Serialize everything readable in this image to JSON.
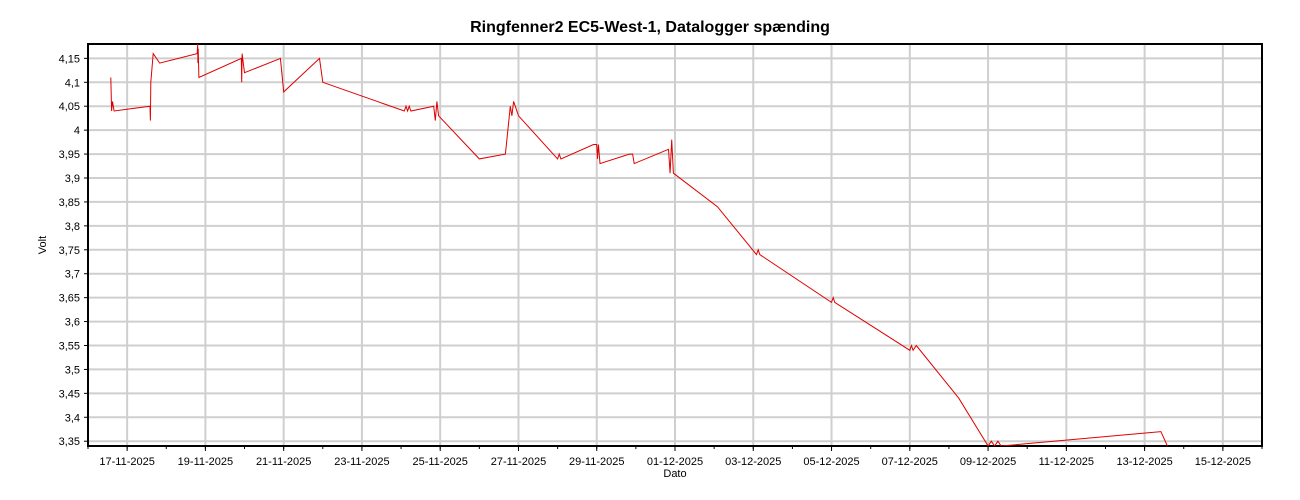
{
  "chart_data": {
    "type": "line",
    "title": "Ringfenner2 EC5-West-1, Datalogger spænding",
    "xlabel": "Dato",
    "ylabel": "Volt",
    "xlim": [
      "2025-11-16",
      "2025-12-16"
    ],
    "ylim": [
      3.34,
      4.18
    ],
    "grid": true,
    "x_ticks": [
      "17-11-2025",
      "19-11-2025",
      "21-11-2025",
      "23-11-2025",
      "25-11-2025",
      "27-11-2025",
      "29-11-2025",
      "01-12-2025",
      "03-12-2025",
      "05-12-2025",
      "07-12-2025",
      "09-12-2025",
      "11-12-2025",
      "13-12-2025",
      "15-12-2025"
    ],
    "y_ticks": [
      "3,35",
      "3,4",
      "3,45",
      "3,5",
      "3,55",
      "3,6",
      "3,65",
      "3,7",
      "3,75",
      "3,8",
      "3,85",
      "3,9",
      "3,95",
      "4",
      "4,05",
      "4,1",
      "4,15"
    ],
    "series": [
      {
        "color": "#e00000",
        "points": [
          [
            "2025-11-16 14:00",
            4.11
          ],
          [
            "2025-11-16 14:30",
            4.04
          ],
          [
            "2025-11-16 15:00",
            4.06
          ],
          [
            "2025-11-16 16:00",
            4.04
          ],
          [
            "2025-11-17 14:00",
            4.05
          ],
          [
            "2025-11-17 14:15",
            4.02
          ],
          [
            "2025-11-17 14:30",
            4.1
          ],
          [
            "2025-11-17 16:00",
            4.16
          ],
          [
            "2025-11-17 20:00",
            4.14
          ],
          [
            "2025-11-18 19:00",
            4.16
          ],
          [
            "2025-11-18 19:15",
            4.18
          ],
          [
            "2025-11-18 19:25",
            4.14
          ],
          [
            "2025-11-18 19:35",
            4.17
          ],
          [
            "2025-11-18 20:00",
            4.11
          ],
          [
            "2025-11-19 22:00",
            4.15
          ],
          [
            "2025-11-19 22:15",
            4.1
          ],
          [
            "2025-11-19 22:30",
            4.16
          ],
          [
            "2025-11-20 00:00",
            4.12
          ],
          [
            "2025-11-20 22:00",
            4.15
          ],
          [
            "2025-11-21 00:00",
            4.08
          ],
          [
            "2025-11-21 22:00",
            4.15
          ],
          [
            "2025-11-22 00:00",
            4.1
          ],
          [
            "2025-11-24 02:00",
            4.04
          ],
          [
            "2025-11-24 03:00",
            4.05
          ],
          [
            "2025-11-24 04:00",
            4.04
          ],
          [
            "2025-11-24 05:00",
            4.05
          ],
          [
            "2025-11-24 06:00",
            4.04
          ],
          [
            "2025-11-24 20:00",
            4.05
          ],
          [
            "2025-11-24 21:00",
            4.02
          ],
          [
            "2025-11-24 22:00",
            4.06
          ],
          [
            "2025-11-24 23:00",
            4.03
          ],
          [
            "2025-11-26 00:00",
            3.94
          ],
          [
            "2025-11-26 16:00",
            3.95
          ],
          [
            "2025-11-26 19:00",
            4.05
          ],
          [
            "2025-11-26 20:00",
            4.03
          ],
          [
            "2025-11-26 21:00",
            4.06
          ],
          [
            "2025-11-27 00:00",
            4.03
          ],
          [
            "2025-11-28 00:00",
            3.94
          ],
          [
            "2025-11-28 01:00",
            3.95
          ],
          [
            "2025-11-28 02:00",
            3.94
          ],
          [
            "2025-11-28 22:00",
            3.97
          ],
          [
            "2025-11-29 00:00",
            3.97
          ],
          [
            "2025-11-29 00:30",
            3.94
          ],
          [
            "2025-11-29 01:00",
            3.97
          ],
          [
            "2025-11-29 02:00",
            3.93
          ],
          [
            "2025-11-29 20:00",
            3.95
          ],
          [
            "2025-11-29 22:00",
            3.95
          ],
          [
            "2025-11-29 23:00",
            3.93
          ],
          [
            "2025-11-30 20:00",
            3.96
          ],
          [
            "2025-11-30 21:00",
            3.91
          ],
          [
            "2025-11-30 22:00",
            3.98
          ],
          [
            "2025-11-30 23:00",
            3.91
          ],
          [
            "2025-12-02 02:00",
            3.84
          ],
          [
            "2025-12-03 02:00",
            3.74
          ],
          [
            "2025-12-03 03:00",
            3.75
          ],
          [
            "2025-12-03 04:00",
            3.74
          ],
          [
            "2025-12-05 00:00",
            3.64
          ],
          [
            "2025-12-05 01:00",
            3.65
          ],
          [
            "2025-12-05 02:00",
            3.64
          ],
          [
            "2025-12-07 00:00",
            3.54
          ],
          [
            "2025-12-07 01:00",
            3.55
          ],
          [
            "2025-12-07 02:00",
            3.54
          ],
          [
            "2025-12-07 04:00",
            3.55
          ],
          [
            "2025-12-08 06:00",
            3.44
          ],
          [
            "2025-12-09 00:00",
            3.34
          ],
          [
            "2025-12-09 02:00",
            3.35
          ],
          [
            "2025-12-09 04:00",
            3.34
          ],
          [
            "2025-12-09 06:00",
            3.35
          ],
          [
            "2025-12-09 08:00",
            3.34
          ],
          [
            "2025-12-13 10:00",
            3.37
          ],
          [
            "2025-12-13 14:00",
            3.34
          ]
        ]
      }
    ]
  }
}
